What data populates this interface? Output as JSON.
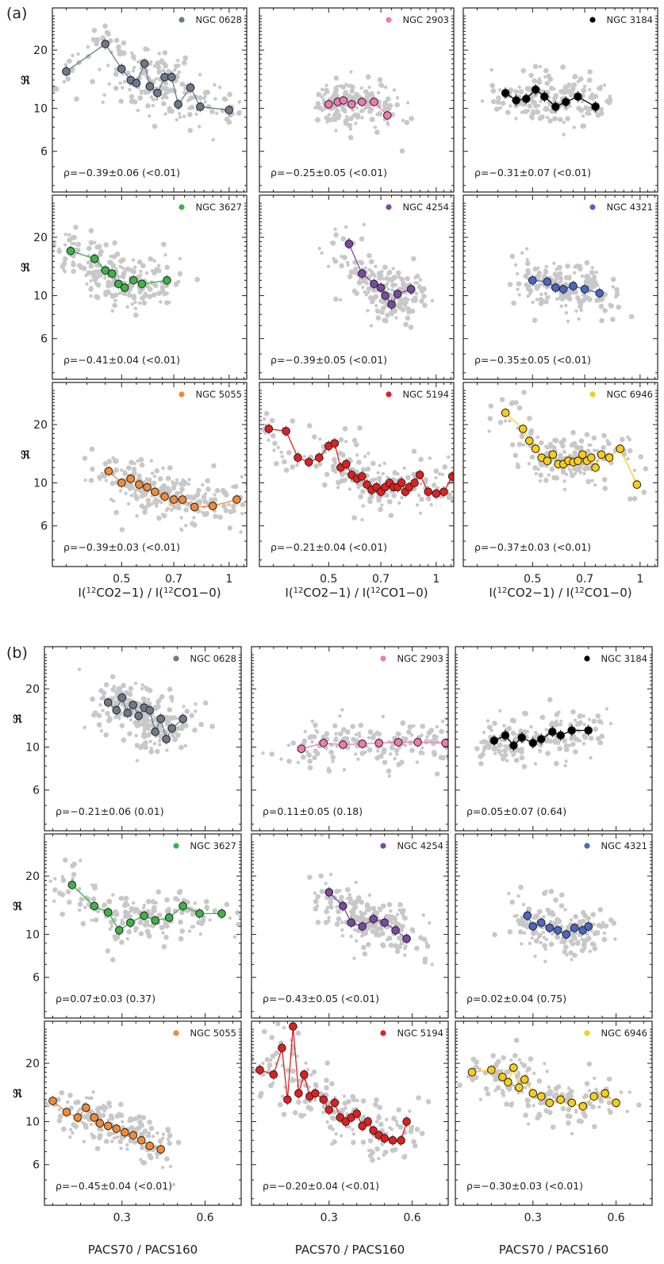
{
  "figure": {
    "panel_labels": [
      "(a)",
      "(b)"
    ],
    "y_symbol": "ℜ",
    "y_ticks": [
      6,
      10,
      20
    ],
    "a_xlabel_parts": [
      "I(",
      "12",
      "CO2−1) / I(",
      "12",
      "CO1−0)"
    ],
    "a_xticks": [
      0.5,
      0.7,
      1
    ],
    "b_xlabel": "PACS70 / PACS160",
    "b_xticks": [
      0.3,
      0.6
    ]
  },
  "chart_data": [
    {
      "group": "a",
      "type": "scatter",
      "xlabel": "I(12CO2-1) / I(12CO1-0)",
      "ylabel": "ℜ",
      "xlim": [
        0.32,
        1.12
      ],
      "ylim": [
        3.7,
        33
      ],
      "x_scale": "log",
      "y_scale": "log",
      "panels": [
        {
          "galaxy": "NGC 0628",
          "color": "#6b7b8c",
          "rho": "ρ=−0.39±0.06 (<0.01)",
          "binned": {
            "x": [
              0.35,
              0.45,
              0.5,
              0.53,
              0.55,
              0.58,
              0.6,
              0.63,
              0.66,
              0.69,
              0.72,
              0.78,
              0.83,
              1.0
            ],
            "y": [
              15.5,
              21.5,
              16.0,
              14.0,
              13.5,
              17.0,
              13.0,
              12.0,
              14.5,
              14.5,
              10.5,
              12.8,
              10.2,
              9.8
            ]
          }
        },
        {
          "galaxy": "NGC 2903",
          "color": "#ee7ab0",
          "rho": "ρ=−0.25±0.05 (<0.01)",
          "binned": {
            "x": [
              0.5,
              0.53,
              0.55,
              0.58,
              0.62,
              0.67,
              0.73
            ],
            "y": [
              10.5,
              10.8,
              11.0,
              10.5,
              10.8,
              10.8,
              9.2
            ]
          }
        },
        {
          "galaxy": "NGC 3184",
          "color": "#000000",
          "rho": "ρ=−0.31±0.07 (<0.01)",
          "binned": {
            "x": [
              0.42,
              0.45,
              0.48,
              0.51,
              0.54,
              0.58,
              0.62,
              0.67,
              0.75
            ],
            "y": [
              12.0,
              11.0,
              11.2,
              12.5,
              11.5,
              10.2,
              10.8,
              11.5,
              10.2
            ]
          }
        },
        {
          "galaxy": "NGC 3627",
          "color": "#3fb24a",
          "rho": "ρ=−0.41±0.04 (<0.01)",
          "binned": {
            "x": [
              0.36,
              0.42,
              0.45,
              0.47,
              0.49,
              0.51,
              0.54,
              0.57,
              0.67
            ],
            "y": [
              17.0,
              15.5,
              13.5,
              13.0,
              11.5,
              11.0,
              12.0,
              11.5,
              12.0
            ]
          }
        },
        {
          "galaxy": "NGC 4254",
          "color": "#7a4aa0",
          "rho": "ρ=−0.39±0.05 (<0.01)",
          "binned": {
            "x": [
              0.57,
              0.62,
              0.67,
              0.7,
              0.72,
              0.75,
              0.78,
              0.85
            ],
            "y": [
              18.5,
              13.0,
              11.5,
              11.0,
              10.0,
              9.0,
              10.2,
              10.8
            ]
          }
        },
        {
          "galaxy": "NGC 4321",
          "color": "#4a68c0",
          "rho": "ρ=−0.35±0.05 (<0.01)",
          "binned": {
            "x": [
              0.5,
              0.55,
              0.58,
              0.61,
              0.65,
              0.7,
              0.77
            ],
            "y": [
              12.0,
              11.8,
              11.0,
              10.8,
              11.2,
              10.8,
              10.3
            ]
          }
        },
        {
          "galaxy": "NGC 5055",
          "color": "#f08a3a",
          "rho": "ρ=−0.39±0.03 (<0.01)",
          "binned": {
            "x": [
              0.46,
              0.5,
              0.53,
              0.56,
              0.59,
              0.62,
              0.66,
              0.7,
              0.74,
              0.8,
              0.9,
              1.05
            ],
            "y": [
              11.5,
              10.0,
              10.5,
              9.8,
              9.5,
              9.0,
              8.5,
              8.2,
              8.2,
              7.5,
              7.6,
              8.2
            ]
          }
        },
        {
          "galaxy": "NGC 5194",
          "color": "#e02020",
          "rho": "ρ=−0.21±0.04 (<0.01)",
          "binned": {
            "x": [
              0.34,
              0.38,
              0.41,
              0.44,
              0.47,
              0.5,
              0.52,
              0.54,
              0.56,
              0.58,
              0.6,
              0.62,
              0.64,
              0.66,
              0.68,
              0.7,
              0.72,
              0.74,
              0.76,
              0.78,
              0.8,
              0.82,
              0.84,
              0.87,
              0.9,
              0.95,
              1.0,
              1.05,
              1.11
            ],
            "y": [
              19.0,
              18.5,
              13.5,
              12.8,
              13.5,
              15.5,
              16.0,
              12.0,
              12.5,
              11.0,
              10.5,
              10.8,
              9.8,
              9.2,
              9.5,
              9.0,
              9.5,
              10.0,
              9.5,
              9.5,
              10.0,
              9.0,
              9.5,
              10.0,
              11.0,
              9.0,
              8.8,
              9.0,
              10.8
            ]
          }
        },
        {
          "galaxy": "NGC 6946",
          "color": "#f7cc1e",
          "rho": "ρ=−0.37±0.03 (<0.01)",
          "binned": {
            "x": [
              0.42,
              0.47,
              0.49,
              0.51,
              0.53,
              0.55,
              0.57,
              0.59,
              0.61,
              0.63,
              0.65,
              0.67,
              0.69,
              0.71,
              0.73,
              0.75,
              0.78,
              0.82,
              0.88,
              0.98
            ],
            "y": [
              23.0,
              19.0,
              16.5,
              15.0,
              13.5,
              13.0,
              14.0,
              12.5,
              12.5,
              13.0,
              12.8,
              13.0,
              14.0,
              13.0,
              13.5,
              12.0,
              14.0,
              13.5,
              15.0,
              9.8
            ]
          }
        }
      ]
    },
    {
      "group": "b",
      "type": "scatter",
      "xlabel": "PACS70 / PACS160",
      "ylabel": "ℜ",
      "xlim": [
        0.02,
        0.73
      ],
      "ylim": [
        3.7,
        33
      ],
      "x_scale": "linear",
      "y_scale": "log",
      "panels": [
        {
          "galaxy": "NGC 0628",
          "color": "#6b7b8c",
          "rho": "ρ=−0.21±0.06 (0.01)",
          "binned": {
            "x": [
              0.25,
              0.28,
              0.3,
              0.32,
              0.34,
              0.36,
              0.38,
              0.4,
              0.42,
              0.44,
              0.46,
              0.48,
              0.52
            ],
            "y": [
              17.0,
              15.5,
              18.0,
              15.0,
              16.5,
              14.5,
              16.0,
              15.5,
              12.0,
              14.0,
              11.0,
              12.5,
              14.0
            ]
          }
        },
        {
          "galaxy": "NGC 2903",
          "color": "#ee7ab0",
          "rho": "ρ=0.11±0.05 (0.18)",
          "binned": {
            "x": [
              0.2,
              0.28,
              0.35,
              0.42,
              0.48,
              0.55,
              0.62,
              0.72
            ],
            "y": [
              9.8,
              10.5,
              10.3,
              10.4,
              10.5,
              10.6,
              10.6,
              10.5
            ]
          }
        },
        {
          "galaxy": "NGC 3184",
          "color": "#000000",
          "rho": "ρ=0.05±0.07 (0.64)",
          "binned": {
            "x": [
              0.16,
              0.2,
              0.23,
              0.26,
              0.3,
              0.33,
              0.37,
              0.4,
              0.44,
              0.5
            ],
            "y": [
              10.8,
              11.5,
              10.2,
              11.2,
              10.5,
              11.0,
              12.0,
              11.5,
              12.2,
              12.2
            ]
          }
        },
        {
          "galaxy": "NGC 3627",
          "color": "#3fb24a",
          "rho": "ρ=0.07±0.03 (0.37)",
          "binned": {
            "x": [
              0.12,
              0.2,
              0.25,
              0.29,
              0.33,
              0.38,
              0.42,
              0.47,
              0.52,
              0.58,
              0.66
            ],
            "y": [
              18.0,
              14.0,
              13.0,
              10.5,
              11.5,
              12.5,
              11.8,
              12.2,
              14.0,
              12.8,
              12.8
            ]
          }
        },
        {
          "galaxy": "NGC 4254",
          "color": "#7a4aa0",
          "rho": "ρ=−0.43±0.05 (<0.01)",
          "binned": {
            "x": [
              0.3,
              0.35,
              0.38,
              0.42,
              0.46,
              0.5,
              0.54,
              0.58
            ],
            "y": [
              16.5,
              14.0,
              11.5,
              11.0,
              12.0,
              11.5,
              10.5,
              9.5
            ]
          }
        },
        {
          "galaxy": "NGC 4321",
          "color": "#4a68c0",
          "rho": "ρ=0.02±0.04 (0.75)",
          "binned": {
            "x": [
              0.28,
              0.3,
              0.33,
              0.36,
              0.39,
              0.42,
              0.45,
              0.48,
              0.5
            ],
            "y": [
              12.5,
              11.0,
              11.5,
              10.8,
              10.5,
              10.0,
              10.8,
              10.5,
              11.0
            ]
          }
        },
        {
          "galaxy": "NGC 5055",
          "color": "#f08a3a",
          "rho": "ρ=−0.45±0.04 (<0.01)",
          "binned": {
            "x": [
              0.05,
              0.1,
              0.14,
              0.17,
              0.2,
              0.22,
              0.25,
              0.28,
              0.31,
              0.34,
              0.37,
              0.4,
              0.44
            ],
            "y": [
              12.8,
              11.2,
              10.5,
              11.8,
              10.5,
              9.8,
              9.5,
              9.2,
              8.8,
              8.5,
              8.0,
              7.5,
              7.2
            ]
          }
        },
        {
          "galaxy": "NGC 5194",
          "color": "#e02020",
          "rho": "ρ=−0.20±0.04 (<0.01)",
          "binned": {
            "x": [
              0.05,
              0.1,
              0.13,
              0.15,
              0.17,
              0.19,
              0.21,
              0.23,
              0.25,
              0.28,
              0.3,
              0.32,
              0.34,
              0.36,
              0.38,
              0.4,
              0.42,
              0.44,
              0.46,
              0.48,
              0.5,
              0.53,
              0.56,
              0.58
            ],
            "y": [
              18.5,
              17.5,
              24.0,
              13.0,
              31.0,
              14.0,
              17.5,
              13.5,
              14.0,
              13.0,
              11.5,
              12.5,
              10.5,
              10.0,
              10.5,
              11.0,
              9.5,
              10.0,
              9.0,
              8.5,
              8.2,
              8.0,
              8.0,
              10.0
            ]
          }
        },
        {
          "galaxy": "NGC 6946",
          "color": "#f7cc1e",
          "rho": "ρ=−0.30±0.03 (<0.01)",
          "binned": {
            "x": [
              0.08,
              0.15,
              0.19,
              0.21,
              0.23,
              0.25,
              0.27,
              0.3,
              0.33,
              0.36,
              0.4,
              0.44,
              0.48,
              0.52,
              0.56,
              0.6
            ],
            "y": [
              18.0,
              18.5,
              17.0,
              16.0,
              19.0,
              15.0,
              16.5,
              14.0,
              13.5,
              12.5,
              13.0,
              12.5,
              12.0,
              13.5,
              14.0,
              12.5
            ]
          }
        }
      ]
    }
  ]
}
